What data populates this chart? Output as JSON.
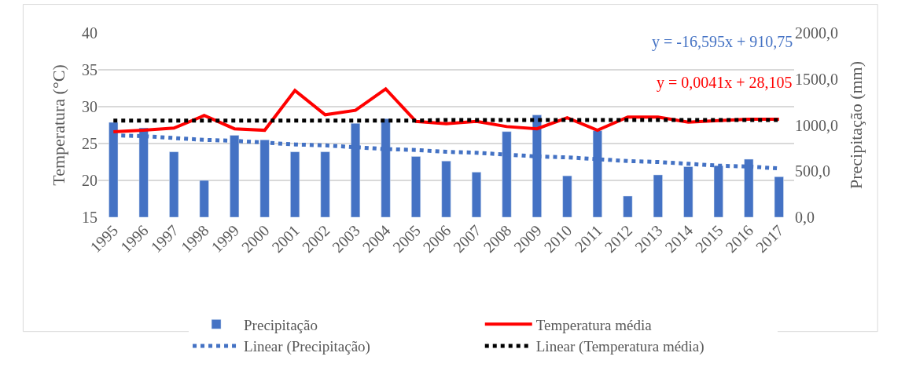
{
  "chart_data": {
    "type": "bar",
    "ylabel": "Temperatura (°C)",
    "y2label": "Precipitação (mm)",
    "categories": [
      "1995",
      "1996",
      "1997",
      "1998",
      "1999",
      "2000",
      "2001",
      "2002",
      "2003",
      "2004",
      "2005",
      "2006",
      "2007",
      "2008",
      "2009",
      "2010",
      "2011",
      "2012",
      "2013",
      "2014",
      "2015",
      "2016",
      "2017"
    ],
    "series": [
      {
        "name": "Precipitação",
        "axis": "y2",
        "color": "#4472c4",
        "values": [
          1030,
          970,
          710,
          400,
          890,
          840,
          710,
          710,
          1020,
          1070,
          660,
          610,
          490,
          930,
          1110,
          450,
          940,
          230,
          460,
          550,
          560,
          630,
          440
        ]
      },
      {
        "name": "Temperatura média",
        "type": "line",
        "color": "#ff0000",
        "line_style": "solid",
        "values": [
          26.6,
          26.8,
          27.1,
          28.8,
          27.0,
          26.8,
          32.2,
          28.9,
          29.5,
          32.4,
          28.0,
          27.7,
          28.0,
          27.3,
          27.0,
          28.5,
          26.8,
          28.6,
          28.6,
          27.9,
          28.1,
          28.3,
          28.3
        ]
      },
      {
        "name": "Linear (Precipitação)",
        "type": "line",
        "axis": "y2",
        "color": "#4472c4",
        "line_style": "dotted",
        "values": [
          890,
          880,
          860,
          840,
          830,
          810,
          790,
          780,
          760,
          740,
          730,
          710,
          700,
          680,
          660,
          650,
          630,
          610,
          600,
          580,
          560,
          550,
          530
        ]
      },
      {
        "name": "Linear (Temperatura média)",
        "type": "line",
        "color": "#000000",
        "line_style": "dotted",
        "values": [
          28.1,
          28.1,
          28.1,
          28.1,
          28.1,
          28.1,
          28.1,
          28.1,
          28.1,
          28.1,
          28.1,
          28.2,
          28.2,
          28.2,
          28.2,
          28.2,
          28.2,
          28.2,
          28.2,
          28.2,
          28.2,
          28.2,
          28.2
        ]
      }
    ],
    "ylim": [
      15,
      40
    ],
    "yticks": [
      15,
      20,
      25,
      30,
      35,
      40
    ],
    "y2lim": [
      0,
      2000
    ],
    "y2ticks": [
      {
        "value": 0,
        "label": "0,0"
      },
      {
        "value": 500,
        "label": "500,0"
      },
      {
        "value": 1000,
        "label": "1000,0"
      },
      {
        "value": 1500,
        "label": "1500,0"
      },
      {
        "value": 2000,
        "label": "2000,0"
      }
    ],
    "annotations": [
      "y = -16,595x + 910,75",
      "y = 0,0041x + 28,105"
    ],
    "grid": "y",
    "legend": "bottom",
    "marker": "none"
  }
}
